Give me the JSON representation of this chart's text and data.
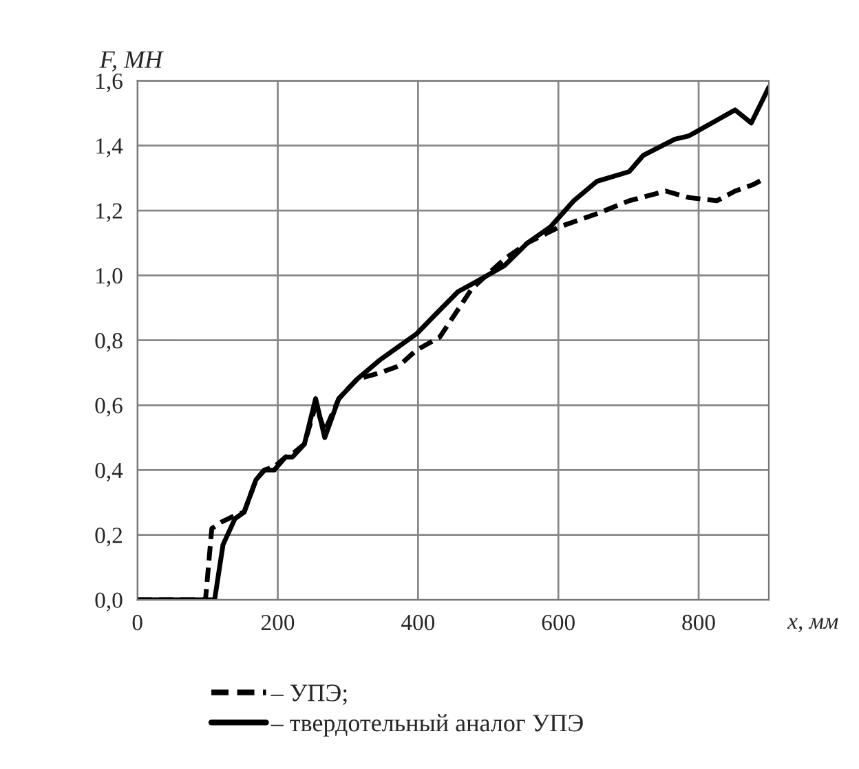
{
  "chart_data": {
    "type": "line",
    "xlabel": "x, мм",
    "ylabel": "F, МН",
    "xlim": [
      0,
      900
    ],
    "xticks": [
      0,
      200,
      400,
      600,
      800
    ],
    "ylim": [
      0,
      1.6
    ],
    "yticks": [
      {
        "value": 0,
        "label": "0,0"
      },
      {
        "value": 0.2,
        "label": "0,2"
      },
      {
        "value": 0.4,
        "label": "0,4"
      },
      {
        "value": 0.6,
        "label": "0,6"
      },
      {
        "value": 0.8,
        "label": "0,8"
      },
      {
        "value": 1.0,
        "label": "1,0"
      },
      {
        "value": 1.2,
        "label": "1,2"
      },
      {
        "value": 1.4,
        "label": "1,4"
      },
      {
        "value": 1.6,
        "label": "1,6"
      }
    ],
    "grid": true,
    "legend": "bottom",
    "marker": "none",
    "series": [
      {
        "name": "– УПЭ;",
        "color": "#000000",
        "line_style": "dashed",
        "x": [
          0,
          97,
          106,
          120,
          139,
          152,
          169,
          181,
          195,
          211,
          221,
          238,
          254,
          267,
          287,
          313,
          346,
          372,
          398,
          431,
          477,
          523,
          556,
          602,
          655,
          701,
          753,
          786,
          826,
          852,
          878,
          895
        ],
        "values": [
          0,
          0,
          0.22,
          0.24,
          0.26,
          0.27,
          0.37,
          0.4,
          0.41,
          0.44,
          0.45,
          0.48,
          0.6,
          0.52,
          0.62,
          0.68,
          0.7,
          0.72,
          0.77,
          0.81,
          0.96,
          1.05,
          1.1,
          1.15,
          1.19,
          1.23,
          1.26,
          1.24,
          1.23,
          1.26,
          1.28,
          1.3
        ]
      },
      {
        "name": "– твердотельный аналог УПЭ",
        "color": "#000000",
        "line_style": "solid",
        "x": [
          0,
          110,
          122,
          139,
          152,
          169,
          181,
          195,
          211,
          221,
          238,
          254,
          267,
          287,
          313,
          346,
          372,
          398,
          425,
          457,
          491,
          523,
          556,
          589,
          622,
          655,
          701,
          721,
          766,
          786,
          819,
          852,
          875,
          891,
          900
        ],
        "values": [
          0,
          0,
          0.17,
          0.25,
          0.27,
          0.37,
          0.4,
          0.4,
          0.44,
          0.44,
          0.48,
          0.62,
          0.5,
          0.62,
          0.68,
          0.74,
          0.78,
          0.82,
          0.88,
          0.95,
          0.99,
          1.03,
          1.1,
          1.15,
          1.23,
          1.29,
          1.32,
          1.37,
          1.42,
          1.43,
          1.47,
          1.51,
          1.47,
          1.54,
          1.58
        ]
      }
    ]
  }
}
